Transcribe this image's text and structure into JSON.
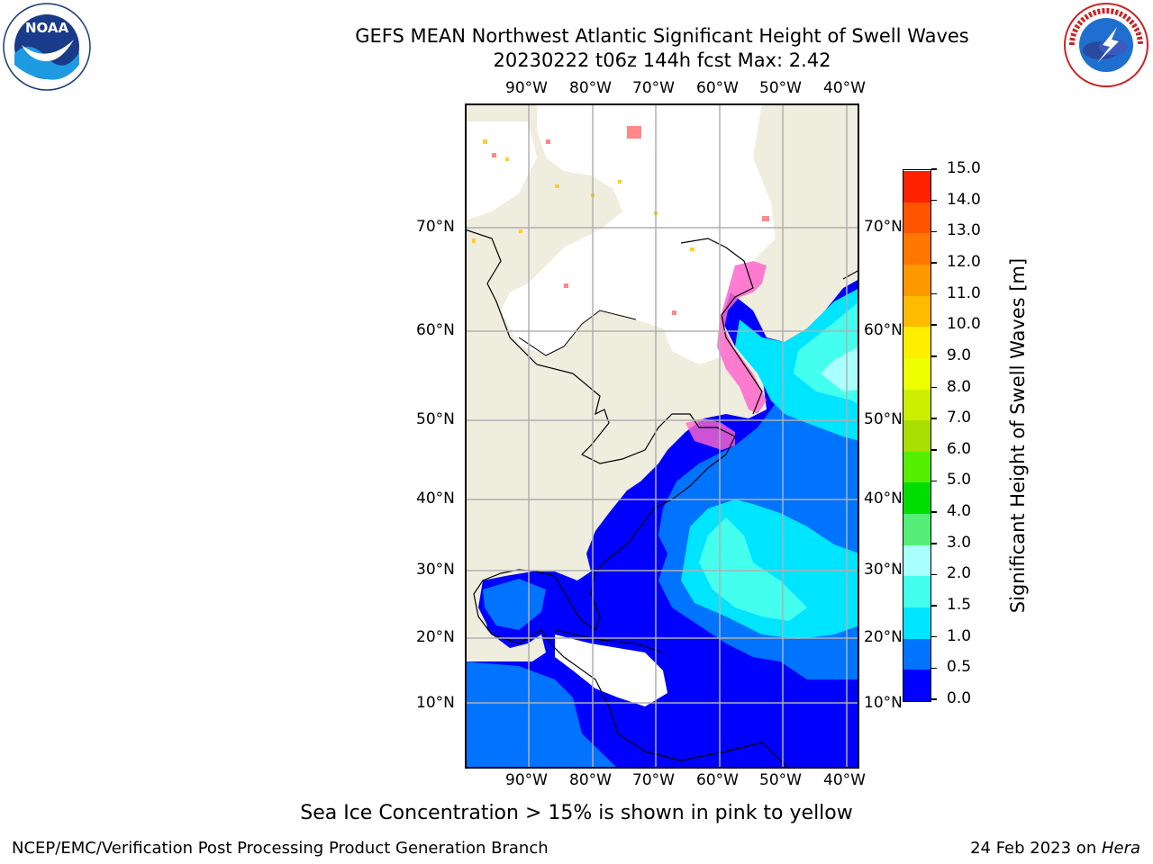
{
  "header": {
    "title_line1": "GEFS MEAN Northwest Atlantic Significant Height of Swell Waves",
    "title_line2": "20230222 t06z 144h fcst   Max: 2.42"
  },
  "logos": {
    "left": {
      "name": "noaa-logo",
      "text": "NOAA"
    },
    "right": {
      "name": "nws-logo",
      "text": "NATIONAL WEATHER SERVICE"
    }
  },
  "map": {
    "lon_labels": [
      "90°W",
      "80°W",
      "70°W",
      "60°W",
      "50°W",
      "40°W"
    ],
    "lat_labels": [
      "70°N",
      "60°N",
      "50°N",
      "40°N",
      "30°N",
      "20°N",
      "10°N"
    ]
  },
  "colorbar": {
    "label": "Significant Height of Swell Waves [m]",
    "ticks": [
      "0.0",
      "0.5",
      "1.0",
      "1.5",
      "2.0",
      "3.0",
      "4.0",
      "5.0",
      "6.0",
      "7.0",
      "8.0",
      "9.0",
      "10.0",
      "11.0",
      "12.0",
      "13.0",
      "14.0",
      "15.0"
    ],
    "colors": [
      "#0000ff",
      "#0073ff",
      "#00e5ff",
      "#44ffee",
      "#aaffff",
      "#55ee77",
      "#00dd00",
      "#55ee00",
      "#aadd00",
      "#ccee00",
      "#eeff00",
      "#ffee00",
      "#ffbb00",
      "#ff9900",
      "#ff7700",
      "#ff5500",
      "#ff2200"
    ]
  },
  "caption": "Sea Ice Concentration > 15% is shown in pink to yellow",
  "footer": {
    "left": "NCEP/EMC/Verification Post Processing Product Generation Branch",
    "right_prefix": "24 Feb 2023 on ",
    "right_host": "Hera"
  }
}
